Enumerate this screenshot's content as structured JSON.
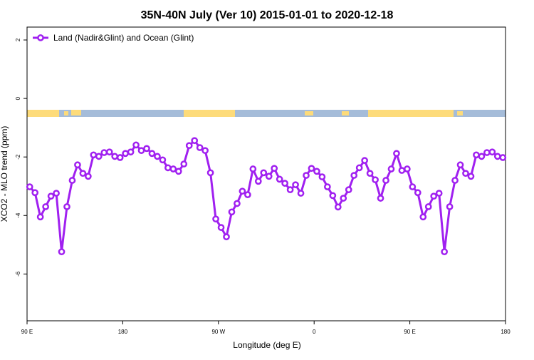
{
  "chart_data": {
    "type": "line",
    "title": "35N-40N July (Ver 10)   2015-01-01 to 2020-12-18",
    "x_label": "Longitude (deg E)",
    "y_label": "XCO2 - MLO trend (ppm)",
    "x": [
      92.5,
      97.5,
      102.5,
      107.5,
      112.5,
      117.5,
      122.5,
      127.5,
      132.5,
      137.5,
      142.5,
      147.5,
      152.5,
      157.5,
      162.5,
      167.5,
      172.5,
      177.5,
      182.5,
      187.5,
      192.5,
      197.5,
      202.5,
      207.5,
      212.5,
      217.5,
      222.5,
      227.5,
      232.5,
      237.5,
      242.5,
      247.5,
      252.5,
      257.5,
      262.5,
      267.5,
      272.5,
      277.5,
      282.5,
      287.5,
      292.5,
      297.5,
      302.5,
      307.5,
      312.5,
      317.5,
      322.5,
      327.5,
      332.5,
      337.5,
      342.5,
      347.5,
      352.5,
      357.5,
      362.5,
      367.5,
      372.5,
      377.5,
      382.5,
      387.5,
      392.5,
      397.5,
      402.5,
      407.5,
      412.5,
      417.5,
      422.5,
      427.5,
      432.5,
      437.5,
      442.5,
      447.5,
      452.5,
      457.5,
      462.5,
      467.5,
      472.5,
      477.5,
      482.5,
      487.5,
      492.5,
      497.5,
      502.5,
      507.5,
      512.5,
      517.5,
      522.5,
      527.5,
      532.5,
      537.5
    ],
    "series": [
      {
        "name": "Land (Nadir&Glint) and Ocean (Glint)",
        "color": "#a020f0",
        "values": [
          -3.02,
          -3.22,
          -4.05,
          -3.7,
          -3.34,
          -3.24,
          -5.24,
          -3.7,
          -2.8,
          -2.27,
          -2.56,
          -2.66,
          -1.93,
          -1.98,
          -1.85,
          -1.83,
          -1.98,
          -2.02,
          -1.88,
          -1.83,
          -1.59,
          -1.78,
          -1.71,
          -1.88,
          -1.98,
          -2.1,
          -2.37,
          -2.41,
          -2.49,
          -2.24,
          -1.61,
          -1.44,
          -1.68,
          -1.78,
          -2.54,
          -4.12,
          -4.41,
          -4.73,
          -3.88,
          -3.59,
          -3.17,
          -3.29,
          -2.41,
          -2.83,
          -2.54,
          -2.66,
          -2.39,
          -2.76,
          -2.9,
          -3.12,
          -2.95,
          -3.24,
          -2.63,
          -2.39,
          -2.49,
          -2.68,
          -3.02,
          -3.32,
          -3.71,
          -3.41,
          -3.12,
          -2.63,
          -2.37,
          -2.12,
          -2.56,
          -2.78,
          -3.41,
          -2.8,
          -2.41,
          -1.88,
          -2.46,
          -2.41,
          -3.02,
          -3.22,
          -4.05,
          -3.7,
          -3.34,
          -3.24,
          -5.24,
          -3.7,
          -2.8,
          -2.27,
          -2.56,
          -2.66,
          -1.93,
          -1.98,
          -1.85,
          -1.83,
          -1.98,
          -2.02
        ]
      }
    ],
    "xlim": [
      90,
      540
    ],
    "xticks": [
      {
        "value": 90,
        "label": "90 E"
      },
      180,
      {
        "value": 270,
        "label": "90 W"
      },
      {
        "value": 360,
        "label": "0"
      },
      {
        "value": 450,
        "label": "90 E"
      },
      {
        "value": 540,
        "label": "180"
      }
    ],
    "ylim": [
      -7.6,
      2.44
    ],
    "yticks": [
      2,
      0,
      -2,
      -4,
      -6
    ],
    "legend": "top-left"
  }
}
